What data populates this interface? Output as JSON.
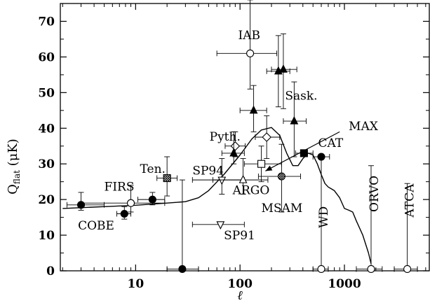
{
  "chart_data": {
    "type": "scatter",
    "title": "",
    "xlabel": "ℓ",
    "ylabel_main": "Q",
    "ylabel_sub": "flat",
    "ylabel_unit": " (μK)",
    "xscale": "log",
    "xlim": [
      1.9,
      6500
    ],
    "ylim": [
      0,
      75
    ],
    "x_ticks": [
      {
        "value": 10,
        "label": "10"
      },
      {
        "value": 100,
        "label": "100"
      },
      {
        "value": 1000,
        "label": "1000"
      }
    ],
    "y_ticks": [
      {
        "value": 0,
        "label": "0"
      },
      {
        "value": 10,
        "label": "10"
      },
      {
        "value": 20,
        "label": "20"
      },
      {
        "value": 30,
        "label": "30"
      },
      {
        "value": 40,
        "label": "40"
      },
      {
        "value": 50,
        "label": "50"
      },
      {
        "value": 60,
        "label": "60"
      },
      {
        "value": 70,
        "label": "70"
      }
    ],
    "grid": false,
    "points": [
      {
        "x": 3,
        "y": 18.5,
        "xerr": [
          2.2,
          5
        ],
        "yerr": [
          1.5,
          3.5
        ],
        "marker": "filled-circle"
      },
      {
        "x": 7.8,
        "y": 16,
        "xerr": [
          6.6,
          9
        ],
        "yerr": [
          1.5,
          2
        ],
        "marker": "filled-circle"
      },
      {
        "x": 14.5,
        "y": 20,
        "xerr": [
          10.5,
          19
        ],
        "yerr": [
          1.5,
          2
        ],
        "marker": "filled-circle"
      },
      {
        "x": 9,
        "y": 19,
        "xerr": [
          3,
          19
        ],
        "yerr": [
          2.5,
          5
        ],
        "marker": "open-circle"
      },
      {
        "x": 28,
        "y": 0.5,
        "xerr": [
          20,
          40
        ],
        "yerr": [
          0,
          25
        ],
        "marker": "filled-circle"
      },
      {
        "x": 20,
        "y": 26,
        "xerr": [
          16,
          25
        ],
        "yerr": [
          5,
          6
        ],
        "marker": "hatched-square"
      },
      {
        "x": 67,
        "y": 25.5,
        "xerr": [
          35,
          110
        ],
        "yerr": [
          4,
          6
        ],
        "marker": "open-down-triangle"
      },
      {
        "x": 65,
        "y": 13,
        "xerr": [
          35,
          110
        ],
        "yerr": [
          0,
          0
        ],
        "marker": "open-down-triangle"
      },
      {
        "x": 107,
        "y": 25.5,
        "xerr": [
          55,
          185
        ],
        "yerr": [
          4,
          6
        ],
        "marker": "open-triangle"
      },
      {
        "x": 125,
        "y": 61,
        "xerr": [
          60,
          225
        ],
        "yerr": [
          10,
          15
        ],
        "marker": "open-circle"
      },
      {
        "x": 90,
        "y": 35,
        "xerr": [
          72,
          112
        ],
        "yerr": [
          3,
          4
        ],
        "marker": "open-diamond"
      },
      {
        "x": 180,
        "y": 37.5,
        "xerr": [
          140,
          240
        ],
        "yerr": [
          6,
          6
        ],
        "marker": "open-diamond"
      },
      {
        "x": 87,
        "y": 33,
        "xerr": [
          67,
          110
        ],
        "yerr": [
          3,
          6
        ],
        "marker": "filled-triangle"
      },
      {
        "x": 135,
        "y": 45,
        "xerr": [
          100,
          180
        ],
        "yerr": [
          6,
          7
        ],
        "marker": "filled-triangle"
      },
      {
        "x": 233,
        "y": 56,
        "xerr": [
          180,
          300
        ],
        "yerr": [
          10,
          10
        ],
        "marker": "filled-triangle"
      },
      {
        "x": 260,
        "y": 56.5,
        "xerr": [
          200,
          350
        ],
        "yerr": [
          11,
          10
        ],
        "marker": "filled-triangle"
      },
      {
        "x": 330,
        "y": 42,
        "xerr": [
          260,
          430
        ],
        "yerr": [
          10,
          11
        ],
        "marker": "filled-triangle"
      },
      {
        "x": 160,
        "y": 30,
        "xerr": [
          110,
          250
        ],
        "yerr": [
          5,
          5
        ],
        "marker": "open-square"
      },
      {
        "x": 250,
        "y": 26.5,
        "xerr": [
          150,
          380
        ],
        "yerr": [
          10,
          9
        ],
        "marker": "hatched-circle"
      },
      {
        "x": 410,
        "y": 33,
        "xerr": [
          340,
          500
        ],
        "yerr": [
          0,
          0
        ],
        "marker": "filled-square"
      },
      {
        "x": 600,
        "y": 32,
        "xerr": [
          500,
          720
        ],
        "yerr": [
          0,
          0
        ],
        "marker": "filled-circle"
      },
      {
        "x": 600,
        "y": 0.5,
        "xerr": [
          500,
          700
        ],
        "yerr": [
          0,
          31
        ],
        "marker": "open-circle"
      },
      {
        "x": 1800,
        "y": 0.5,
        "xerr": [
          1300,
          2300
        ],
        "yerr": [
          0,
          29
        ],
        "marker": "open-circle"
      },
      {
        "x": 4000,
        "y": 0.5,
        "xerr": [
          3000,
          5000
        ],
        "yerr": [
          0,
          24
        ],
        "marker": "open-circle"
      }
    ],
    "curve": [
      [
        2,
        17.5
      ],
      [
        5,
        18
      ],
      [
        10,
        18.4
      ],
      [
        20,
        19
      ],
      [
        30,
        19.4
      ],
      [
        40,
        20.5
      ],
      [
        50,
        22.5
      ],
      [
        70,
        27
      ],
      [
        100,
        32.5
      ],
      [
        130,
        37
      ],
      [
        160,
        39.5
      ],
      [
        200,
        40.2
      ],
      [
        240,
        38
      ],
      [
        280,
        33
      ],
      [
        320,
        29.5
      ],
      [
        360,
        29.5
      ],
      [
        400,
        31.5
      ],
      [
        450,
        33
      ],
      [
        500,
        32.5
      ],
      [
        550,
        30
      ],
      [
        600,
        27
      ],
      [
        650,
        24.5
      ],
      [
        700,
        23.5
      ],
      [
        750,
        23
      ],
      [
        800,
        22.5
      ],
      [
        900,
        20.5
      ],
      [
        1000,
        17.5
      ],
      [
        1100,
        17
      ],
      [
        1200,
        16.5
      ],
      [
        1300,
        14
      ],
      [
        1500,
        10
      ],
      [
        1700,
        5
      ],
      [
        1800,
        2
      ]
    ],
    "annotations": [
      {
        "text": "IAB",
        "x": 96,
        "y": 65,
        "rotate": false
      },
      {
        "text": "Sask.",
        "x": 270,
        "y": 48,
        "rotate": false
      },
      {
        "text": "MAX",
        "x": 1100,
        "y": 39.5,
        "rotate": false
      },
      {
        "text": "CAT",
        "x": 560,
        "y": 34.8,
        "rotate": false
      },
      {
        "text": "Pyth.",
        "x": 51,
        "y": 36.5,
        "rotate": false
      },
      {
        "text": "Ten.",
        "x": 11,
        "y": 27.5,
        "rotate": false
      },
      {
        "text": "SP94",
        "x": 35,
        "y": 27,
        "rotate": false
      },
      {
        "text": "FIRS",
        "x": 5,
        "y": 22.5,
        "rotate": false
      },
      {
        "text": "ARGO",
        "x": 85,
        "y": 21.5,
        "rotate": false
      },
      {
        "text": "MSAM",
        "x": 160,
        "y": 16.5,
        "rotate": false
      },
      {
        "text": "COBE",
        "x": 2.8,
        "y": 11.6,
        "rotate": false
      },
      {
        "text": "SP91",
        "x": 70,
        "y": 8.8,
        "rotate": false
      },
      {
        "text": "WD",
        "x": 690,
        "y": 12,
        "rotate": true
      },
      {
        "text": "ORVO",
        "x": 2100,
        "y": 16.5,
        "rotate": true
      },
      {
        "text": "ATCA",
        "x": 4600,
        "y": 15,
        "rotate": true
      }
    ],
    "arrow": {
      "from": [
        900,
        39
      ],
      "to": [
        175,
        28
      ]
    }
  }
}
